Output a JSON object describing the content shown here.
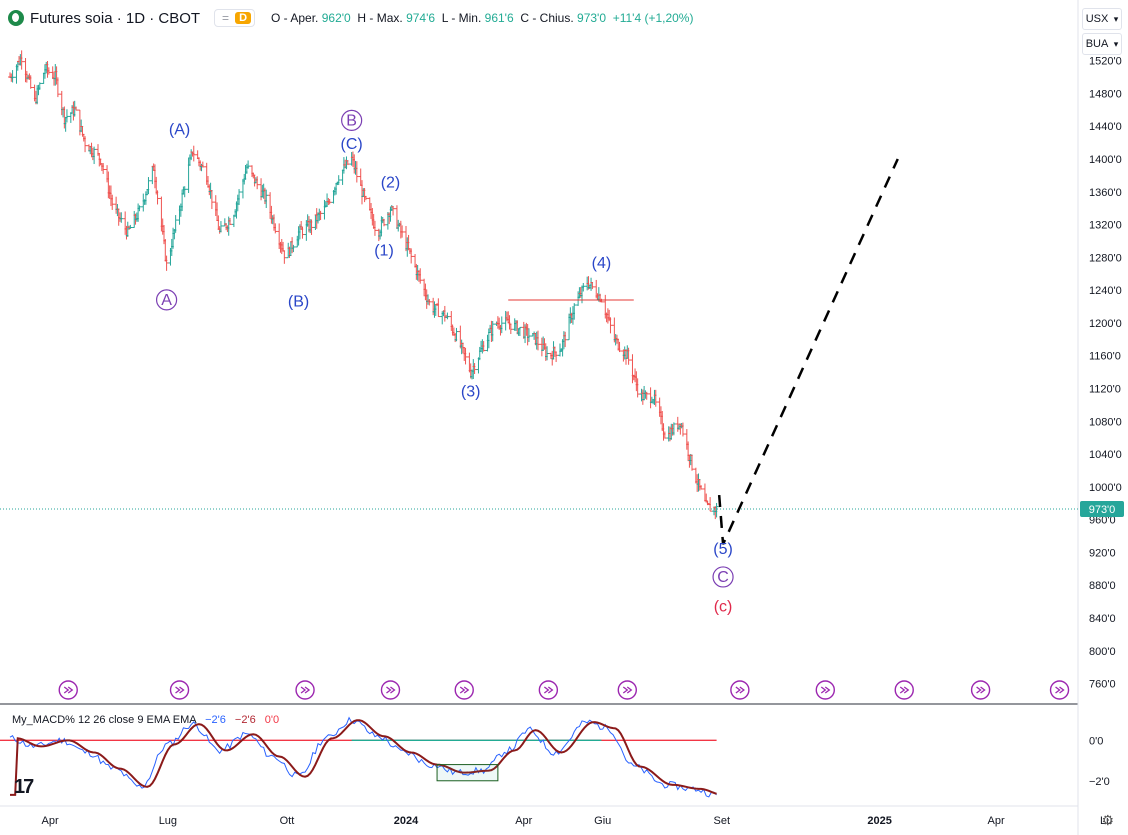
{
  "header": {
    "symbol": "Futures soia · 1D · CBOT",
    "eq_sign": "=",
    "d_badge": "D",
    "ohlc": {
      "o_label": "O - Aper.",
      "o": "962'0",
      "h_label": "H - Max.",
      "h": "974'6",
      "l_label": "L - Min.",
      "l": "961'6",
      "c_label": "C - Chius.",
      "c": "973'0",
      "chg": "+11'4 (+1,20%)"
    }
  },
  "currency_button": "USX",
  "unit_button": "BUA",
  "price_axis": {
    "labels": [
      "1520'0",
      "1480'0",
      "1440'0",
      "1400'0",
      "1360'0",
      "1320'0",
      "1280'0",
      "1240'0",
      "1200'0",
      "1160'0",
      "1120'0",
      "1080'0",
      "1040'0",
      "1000'0",
      "960'0",
      "920'0",
      "880'0",
      "840'0",
      "800'0",
      "760'0"
    ],
    "last_price": "973'0"
  },
  "time_axis": {
    "labels": [
      "Apr",
      "Lug",
      "Ott",
      "2024",
      "Apr",
      "Giu",
      "Set",
      "2025",
      "Apr",
      "Lu"
    ]
  },
  "macd": {
    "name": "My_MACD%",
    "params": "12 26 close 9 EMA EMA",
    "macd": "−2'6",
    "signal": "−2'6",
    "hist": "0'0",
    "axis": [
      "0'0",
      "−2'0"
    ]
  },
  "colors": {
    "up": "#26a69a",
    "down": "#ef5350",
    "wave_blue": "#2a46c8",
    "wave_purple": "#7b3fb3",
    "wave_red": "#e0284a",
    "macd_line": "#2962ff",
    "signal_line": "#8b1a1a",
    "zero_red": "#f23645",
    "zero_green": "#22ab94"
  },
  "chart_data": {
    "type": "ohlc",
    "title": "Futures soia · 1D · CBOT",
    "y_range": [
      740,
      1550
    ],
    "x_range": [
      "2023-03",
      "2025-06"
    ],
    "price_path": [
      {
        "date": "2023-03-01",
        "price": 1500
      },
      {
        "date": "2023-03-10",
        "price": 1525
      },
      {
        "date": "2023-03-20",
        "price": 1470
      },
      {
        "date": "2023-03-28",
        "price": 1510
      },
      {
        "date": "2023-04-05",
        "price": 1500
      },
      {
        "date": "2023-04-12",
        "price": 1450
      },
      {
        "date": "2023-04-20",
        "price": 1460
      },
      {
        "date": "2023-04-28",
        "price": 1420
      },
      {
        "date": "2023-05-10",
        "price": 1400
      },
      {
        "date": "2023-05-20",
        "price": 1340
      },
      {
        "date": "2023-05-31",
        "price": 1310
      },
      {
        "date": "2023-06-10",
        "price": 1340
      },
      {
        "date": "2023-06-20",
        "price": 1390
      },
      {
        "date": "2023-06-30",
        "price": 1270
      },
      {
        "date": "2023-07-10",
        "price": 1340
      },
      {
        "date": "2023-07-20",
        "price": 1410
      },
      {
        "date": "2023-07-31",
        "price": 1380
      },
      {
        "date": "2023-08-10",
        "price": 1310
      },
      {
        "date": "2023-08-20",
        "price": 1330
      },
      {
        "date": "2023-08-31",
        "price": 1390
      },
      {
        "date": "2023-09-15",
        "price": 1350
      },
      {
        "date": "2023-09-30",
        "price": 1280
      },
      {
        "date": "2023-10-10",
        "price": 1310
      },
      {
        "date": "2023-10-20",
        "price": 1320
      },
      {
        "date": "2023-10-31",
        "price": 1340
      },
      {
        "date": "2023-11-10",
        "price": 1380
      },
      {
        "date": "2023-11-20",
        "price": 1400
      },
      {
        "date": "2023-11-30",
        "price": 1350
      },
      {
        "date": "2023-12-10",
        "price": 1310
      },
      {
        "date": "2023-12-20",
        "price": 1340
      },
      {
        "date": "2023-12-31",
        "price": 1300
      },
      {
        "date": "2024-01-10",
        "price": 1260
      },
      {
        "date": "2024-01-20",
        "price": 1220
      },
      {
        "date": "2024-01-31",
        "price": 1210
      },
      {
        "date": "2024-02-10",
        "price": 1180
      },
      {
        "date": "2024-02-20",
        "price": 1140
      },
      {
        "date": "2024-02-29",
        "price": 1170
      },
      {
        "date": "2024-03-10",
        "price": 1200
      },
      {
        "date": "2024-03-20",
        "price": 1200
      },
      {
        "date": "2024-03-31",
        "price": 1190
      },
      {
        "date": "2024-04-10",
        "price": 1180
      },
      {
        "date": "2024-04-20",
        "price": 1160
      },
      {
        "date": "2024-04-30",
        "price": 1170
      },
      {
        "date": "2024-05-10",
        "price": 1220
      },
      {
        "date": "2024-05-20",
        "price": 1250
      },
      {
        "date": "2024-05-31",
        "price": 1230
      },
      {
        "date": "2024-06-10",
        "price": 1180
      },
      {
        "date": "2024-06-20",
        "price": 1160
      },
      {
        "date": "2024-06-30",
        "price": 1110
      },
      {
        "date": "2024-07-10",
        "price": 1110
      },
      {
        "date": "2024-07-20",
        "price": 1060
      },
      {
        "date": "2024-07-31",
        "price": 1080
      },
      {
        "date": "2024-08-10",
        "price": 1020
      },
      {
        "date": "2024-08-20",
        "price": 975
      },
      {
        "date": "2024-08-28",
        "price": 973
      }
    ],
    "projection": [
      {
        "date": "2024-08-30",
        "price": 990
      },
      {
        "date": "2024-09-02",
        "price": 930
      },
      {
        "date": "2025-01-15",
        "price": 1400
      }
    ],
    "horizontal_level": {
      "price": 1228,
      "from": "2024-03-20",
      "to": "2024-06-25"
    },
    "wave_labels": [
      {
        "text": "(A)",
        "date": "2023-07-10",
        "price": 1430,
        "color": "wave_blue",
        "circle": false
      },
      {
        "text": "A",
        "date": "2023-06-30",
        "price": 1222,
        "color": "wave_purple",
        "circle": true
      },
      {
        "text": "B",
        "date": "2023-11-20",
        "price": 1441,
        "color": "wave_purple",
        "circle": true
      },
      {
        "text": "(C)",
        "date": "2023-11-20",
        "price": 1412,
        "color": "wave_blue",
        "circle": false
      },
      {
        "text": "(B)",
        "date": "2023-10-10",
        "price": 1220,
        "color": "wave_blue",
        "circle": false
      },
      {
        "text": "(2)",
        "date": "2023-12-20",
        "price": 1365,
        "color": "wave_blue",
        "circle": false
      },
      {
        "text": "(1)",
        "date": "2023-12-15",
        "price": 1282,
        "color": "wave_blue",
        "circle": false
      },
      {
        "text": "(3)",
        "date": "2024-02-20",
        "price": 1110,
        "color": "wave_blue",
        "circle": false
      },
      {
        "text": "(4)",
        "date": "2024-05-31",
        "price": 1267,
        "color": "wave_blue",
        "circle": false
      },
      {
        "text": "(5)",
        "date": "2024-09-02",
        "price": 918,
        "color": "wave_blue",
        "circle": false
      },
      {
        "text": "C",
        "date": "2024-09-02",
        "price": 884,
        "color": "wave_purple",
        "circle": true
      },
      {
        "text": "(c)",
        "date": "2024-09-02",
        "price": 848,
        "color": "wave_red",
        "circle": false
      }
    ],
    "macd_range": [
      -3,
      1.4
    ],
    "macd_path": [
      {
        "date": "2023-03-01",
        "v": 0.1
      },
      {
        "date": "2023-03-20",
        "v": -0.3
      },
      {
        "date": "2023-04-10",
        "v": 0.0
      },
      {
        "date": "2023-04-30",
        "v": -0.6
      },
      {
        "date": "2023-05-20",
        "v": -1.4
      },
      {
        "date": "2023-06-10",
        "v": -2.3
      },
      {
        "date": "2023-07-01",
        "v": -0.2
      },
      {
        "date": "2023-07-20",
        "v": 0.8
      },
      {
        "date": "2023-08-10",
        "v": -0.5
      },
      {
        "date": "2023-08-31",
        "v": 0.3
      },
      {
        "date": "2023-09-20",
        "v": -0.8
      },
      {
        "date": "2023-10-10",
        "v": -1.8
      },
      {
        "date": "2023-10-31",
        "v": 0.1
      },
      {
        "date": "2023-11-20",
        "v": 1.0
      },
      {
        "date": "2023-12-10",
        "v": 0.2
      },
      {
        "date": "2023-12-31",
        "v": -0.6
      },
      {
        "date": "2024-01-20",
        "v": -1.2
      },
      {
        "date": "2024-02-10",
        "v": -1.6
      },
      {
        "date": "2024-02-29",
        "v": -1.5
      },
      {
        "date": "2024-03-20",
        "v": -0.5
      },
      {
        "date": "2024-04-05",
        "v": 0.5
      },
      {
        "date": "2024-04-25",
        "v": -0.6
      },
      {
        "date": "2024-05-20",
        "v": 0.9
      },
      {
        "date": "2024-06-05",
        "v": 0.6
      },
      {
        "date": "2024-06-25",
        "v": -1.3
      },
      {
        "date": "2024-07-20",
        "v": -2.2
      },
      {
        "date": "2024-08-10",
        "v": -2.4
      },
      {
        "date": "2024-08-28",
        "v": -2.7
      }
    ],
    "macd_box": {
      "from": "2024-01-25",
      "to": "2024-03-12",
      "top": -1.2,
      "bottom": -2.0
    },
    "ma_buttons_dates": [
      "2023-04-15",
      "2023-07-10",
      "2023-10-15",
      "2023-12-20",
      "2024-02-15",
      "2024-04-20",
      "2024-06-20",
      "2024-09-15",
      "2024-11-20",
      "2025-01-20",
      "2025-03-20",
      "2025-05-20"
    ]
  }
}
